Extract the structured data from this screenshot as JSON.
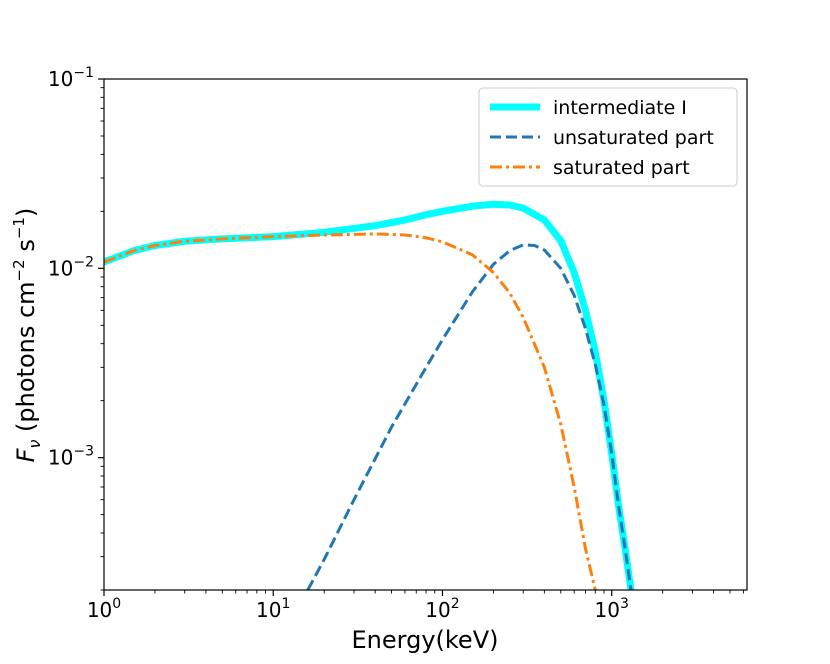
{
  "chart_data": {
    "type": "line",
    "title": "",
    "xlabel": "Energy(keV)",
    "ylabel": {
      "symbol": "F",
      "subscript": "ν",
      "units_open": " (photons cm",
      "units_exp1": "−2",
      "units_mid": " s",
      "units_exp2": "−1",
      "units_close": ")"
    },
    "xscale": "log",
    "yscale": "log",
    "xlim": [
      1,
      6300
    ],
    "ylim": [
      0.0002,
      0.1
    ],
    "grid": false,
    "legend_position": "top-right",
    "x_ticks": [
      {
        "value": 1,
        "base": "10",
        "exp": "0"
      },
      {
        "value": 10,
        "base": "10",
        "exp": "1"
      },
      {
        "value": 100,
        "base": "10",
        "exp": "2"
      },
      {
        "value": 1000,
        "base": "10",
        "exp": "3"
      }
    ],
    "y_ticks": [
      {
        "value": 0.001,
        "base": "10",
        "exp": "−3"
      },
      {
        "value": 0.01,
        "base": "10",
        "exp": "−2"
      },
      {
        "value": 0.1,
        "base": "10",
        "exp": "−1"
      }
    ],
    "series": [
      {
        "name": "intermediate I",
        "color": "#00ffff",
        "style": "solid",
        "width": "thick",
        "x": [
          1,
          1.5,
          2,
          3,
          5,
          10,
          20,
          40,
          60,
          80,
          100,
          150,
          200,
          250,
          300,
          400,
          500,
          600,
          700,
          800,
          900,
          1000,
          1100,
          1200,
          1300
        ],
        "y": [
          0.0108,
          0.0124,
          0.0132,
          0.0139,
          0.0143,
          0.0147,
          0.0155,
          0.0168,
          0.018,
          0.0192,
          0.02,
          0.0213,
          0.0218,
          0.0216,
          0.0208,
          0.018,
          0.014,
          0.0095,
          0.006,
          0.0036,
          0.002,
          0.00105,
          0.00055,
          0.00033,
          0.0002
        ]
      },
      {
        "name": "unsaturated part",
        "color": "#1f77b4",
        "style": "dashed",
        "width": "normal",
        "x": [
          16,
          20,
          30,
          50,
          80,
          100,
          150,
          200,
          250,
          300,
          350,
          400,
          500,
          600,
          700,
          800,
          900,
          1000,
          1100,
          1200,
          1300
        ],
        "y": [
          0.0002,
          0.00029,
          0.0006,
          0.00145,
          0.003,
          0.0042,
          0.0075,
          0.0105,
          0.0124,
          0.0133,
          0.0132,
          0.0125,
          0.01,
          0.0072,
          0.0048,
          0.0031,
          0.0019,
          0.00105,
          0.00055,
          0.00033,
          0.0002
        ]
      },
      {
        "name": "saturated part",
        "color": "#ff7f0e",
        "style": "dashdot",
        "width": "normal",
        "x": [
          1,
          1.5,
          2,
          3,
          5,
          10,
          20,
          40,
          60,
          80,
          100,
          150,
          200,
          250,
          300,
          400,
          500,
          600,
          700,
          800
        ],
        "y": [
          0.0108,
          0.0124,
          0.0132,
          0.0139,
          0.0143,
          0.0147,
          0.015,
          0.0152,
          0.015,
          0.0145,
          0.0138,
          0.0118,
          0.0095,
          0.0074,
          0.0055,
          0.003,
          0.0015,
          0.0007,
          0.00033,
          0.0002
        ]
      }
    ]
  }
}
